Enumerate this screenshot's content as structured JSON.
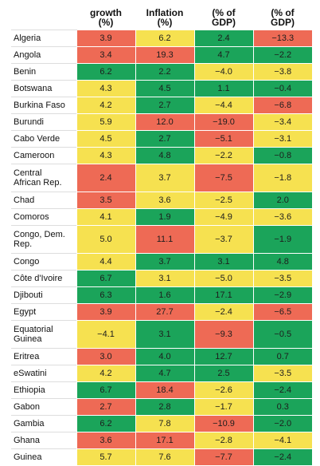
{
  "columns": [
    {
      "key": "country",
      "label": ""
    },
    {
      "key": "growth",
      "label": "growth\n(%)"
    },
    {
      "key": "inflation",
      "label": "Inflation\n(%)"
    },
    {
      "key": "fiscal",
      "label": "(% of\nGDP)"
    },
    {
      "key": "external",
      "label": "(% of\nGDP)"
    }
  ],
  "colors": {
    "red": "#ee6a55",
    "yellow": "#f6e150",
    "green": "#1ba45a"
  },
  "rows": [
    {
      "country": "Algeria",
      "tall": false,
      "cells": [
        {
          "v": "3.9",
          "c": "red"
        },
        {
          "v": "6.2",
          "c": "yellow"
        },
        {
          "v": "2.4",
          "c": "green"
        },
        {
          "v": "−13.3",
          "c": "red"
        }
      ]
    },
    {
      "country": "Angola",
      "tall": false,
      "cells": [
        {
          "v": "3.4",
          "c": "red"
        },
        {
          "v": "19.3",
          "c": "red"
        },
        {
          "v": "4.7",
          "c": "green"
        },
        {
          "v": "−2.2",
          "c": "green"
        }
      ]
    },
    {
      "country": "Benin",
      "tall": false,
      "cells": [
        {
          "v": "6.2",
          "c": "green"
        },
        {
          "v": "2.2",
          "c": "green"
        },
        {
          "v": "−4.0",
          "c": "yellow"
        },
        {
          "v": "−3.8",
          "c": "yellow"
        }
      ]
    },
    {
      "country": "Botswana",
      "tall": false,
      "cells": [
        {
          "v": "4.3",
          "c": "yellow"
        },
        {
          "v": "4.5",
          "c": "green"
        },
        {
          "v": "1.1",
          "c": "green"
        },
        {
          "v": "−0.4",
          "c": "green"
        }
      ]
    },
    {
      "country": "Burkina Faso",
      "tall": false,
      "cells": [
        {
          "v": "4.2",
          "c": "yellow"
        },
        {
          "v": "2.7",
          "c": "green"
        },
        {
          "v": "−4.4",
          "c": "yellow"
        },
        {
          "v": "−6.8",
          "c": "red"
        }
      ]
    },
    {
      "country": "Burundi",
      "tall": false,
      "cells": [
        {
          "v": "5.9",
          "c": "yellow"
        },
        {
          "v": "12.0",
          "c": "red"
        },
        {
          "v": "−19.0",
          "c": "red"
        },
        {
          "v": "−3.4",
          "c": "yellow"
        }
      ]
    },
    {
      "country": "Cabo Verde",
      "tall": false,
      "cells": [
        {
          "v": "4.5",
          "c": "yellow"
        },
        {
          "v": "2.7",
          "c": "green"
        },
        {
          "v": "−5.1",
          "c": "red"
        },
        {
          "v": "−3.1",
          "c": "yellow"
        }
      ]
    },
    {
      "country": "Cameroon",
      "tall": false,
      "cells": [
        {
          "v": "4.3",
          "c": "yellow"
        },
        {
          "v": "4.8",
          "c": "green"
        },
        {
          "v": "−2.2",
          "c": "yellow"
        },
        {
          "v": "−0.8",
          "c": "green"
        }
      ]
    },
    {
      "country": "Central\nAfrican Rep.",
      "tall": true,
      "cells": [
        {
          "v": "2.4",
          "c": "red"
        },
        {
          "v": "3.7",
          "c": "yellow"
        },
        {
          "v": "−7.5",
          "c": "red"
        },
        {
          "v": "−1.8",
          "c": "yellow"
        }
      ]
    },
    {
      "country": "Chad",
      "tall": false,
      "cells": [
        {
          "v": "3.5",
          "c": "red"
        },
        {
          "v": "3.6",
          "c": "yellow"
        },
        {
          "v": "−2.5",
          "c": "yellow"
        },
        {
          "v": "2.0",
          "c": "green"
        }
      ]
    },
    {
      "country": "Comoros",
      "tall": false,
      "cells": [
        {
          "v": "4.1",
          "c": "yellow"
        },
        {
          "v": "1.9",
          "c": "green"
        },
        {
          "v": "−4.9",
          "c": "yellow"
        },
        {
          "v": "−3.6",
          "c": "yellow"
        }
      ]
    },
    {
      "country": "Congo, Dem.\nRep.",
      "tall": true,
      "cells": [
        {
          "v": "5.0",
          "c": "yellow"
        },
        {
          "v": "11.1",
          "c": "red"
        },
        {
          "v": "−3.7",
          "c": "yellow"
        },
        {
          "v": "−1.9",
          "c": "green"
        }
      ]
    },
    {
      "country": "Congo",
      "tall": false,
      "cells": [
        {
          "v": "4.4",
          "c": "yellow"
        },
        {
          "v": "3.7",
          "c": "green"
        },
        {
          "v": "3.1",
          "c": "green"
        },
        {
          "v": "4.8",
          "c": "green"
        }
      ]
    },
    {
      "country": "Côte d'Ivoire",
      "tall": false,
      "cells": [
        {
          "v": "6.7",
          "c": "green"
        },
        {
          "v": "3.1",
          "c": "yellow"
        },
        {
          "v": "−5.0",
          "c": "yellow"
        },
        {
          "v": "−3.5",
          "c": "yellow"
        }
      ]
    },
    {
      "country": "Djibouti",
      "tall": false,
      "cells": [
        {
          "v": "6.3",
          "c": "green"
        },
        {
          "v": "1.6",
          "c": "green"
        },
        {
          "v": "17.1",
          "c": "green"
        },
        {
          "v": "−2.9",
          "c": "green"
        }
      ]
    },
    {
      "country": "Egypt",
      "tall": false,
      "cells": [
        {
          "v": "3.9",
          "c": "red"
        },
        {
          "v": "27.7",
          "c": "red"
        },
        {
          "v": "−2.4",
          "c": "yellow"
        },
        {
          "v": "−6.5",
          "c": "red"
        }
      ]
    },
    {
      "country": "Equatorial\nGuinea",
      "tall": true,
      "cells": [
        {
          "v": "−4.1",
          "c": "yellow"
        },
        {
          "v": "3.1",
          "c": "green"
        },
        {
          "v": "−9.3",
          "c": "red"
        },
        {
          "v": "−0.5",
          "c": "green"
        }
      ]
    },
    {
      "country": "Eritrea",
      "tall": false,
      "cells": [
        {
          "v": "3.0",
          "c": "red"
        },
        {
          "v": "4.0",
          "c": "green"
        },
        {
          "v": "12.7",
          "c": "green"
        },
        {
          "v": "0.7",
          "c": "green"
        }
      ]
    },
    {
      "country": "eSwatini",
      "tall": false,
      "cells": [
        {
          "v": "4.2",
          "c": "yellow"
        },
        {
          "v": "4.7",
          "c": "green"
        },
        {
          "v": "2.5",
          "c": "green"
        },
        {
          "v": "−3.5",
          "c": "yellow"
        }
      ]
    },
    {
      "country": "Ethiopia",
      "tall": false,
      "cells": [
        {
          "v": "6.7",
          "c": "green"
        },
        {
          "v": "18.4",
          "c": "red"
        },
        {
          "v": "−2.6",
          "c": "yellow"
        },
        {
          "v": "−2.4",
          "c": "green"
        }
      ]
    },
    {
      "country": "Gabon",
      "tall": false,
      "cells": [
        {
          "v": "2.7",
          "c": "red"
        },
        {
          "v": "2.8",
          "c": "green"
        },
        {
          "v": "−1.7",
          "c": "yellow"
        },
        {
          "v": "0.3",
          "c": "green"
        }
      ]
    },
    {
      "country": "Gambia",
      "tall": false,
      "cells": [
        {
          "v": "6.2",
          "c": "green"
        },
        {
          "v": "7.8",
          "c": "yellow"
        },
        {
          "v": "−10.9",
          "c": "red"
        },
        {
          "v": "−2.0",
          "c": "green"
        }
      ]
    },
    {
      "country": "Ghana",
      "tall": false,
      "cells": [
        {
          "v": "3.6",
          "c": "red"
        },
        {
          "v": "17.1",
          "c": "red"
        },
        {
          "v": "−2.8",
          "c": "yellow"
        },
        {
          "v": "−4.1",
          "c": "yellow"
        }
      ]
    },
    {
      "country": "Guinea",
      "tall": false,
      "cells": [
        {
          "v": "5.7",
          "c": "yellow"
        },
        {
          "v": "7.6",
          "c": "yellow"
        },
        {
          "v": "−7.7",
          "c": "red"
        },
        {
          "v": "−2.4",
          "c": "green"
        }
      ]
    }
  ]
}
